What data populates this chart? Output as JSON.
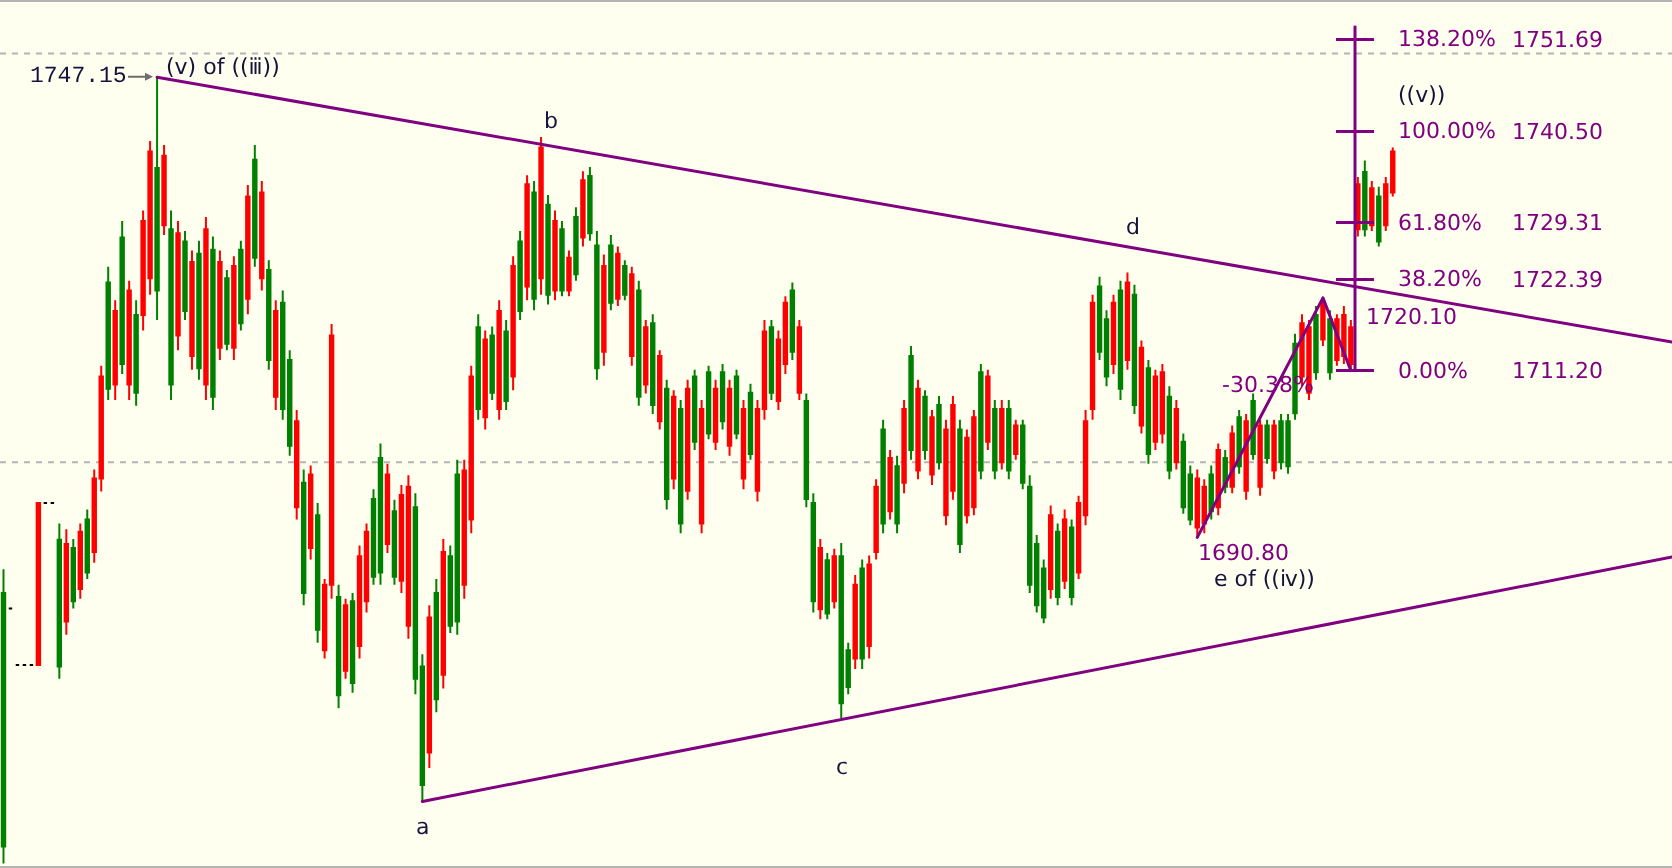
{
  "chart_data": {
    "type": "candlestick",
    "categories": [
      null,
      null,
      null,
      null,
      null,
      null,
      null,
      null,
      null,
      null,
      null,
      null,
      null,
      null,
      null,
      null,
      null,
      null,
      null,
      null,
      null,
      null,
      null,
      null,
      null,
      null,
      null,
      null,
      null,
      null,
      null,
      null,
      null,
      null,
      null,
      null,
      null,
      null,
      null,
      null,
      null,
      null,
      null,
      null,
      null,
      null,
      null,
      null,
      null,
      null,
      null,
      null,
      null,
      null,
      null,
      null,
      null,
      null,
      null,
      null,
      null,
      null,
      null,
      null,
      null,
      null,
      null,
      null,
      null,
      null,
      null,
      null,
      null,
      null,
      null,
      null,
      null,
      null,
      null,
      null,
      null,
      null,
      null,
      null,
      null,
      null,
      null,
      null,
      null,
      null,
      null,
      null,
      null,
      null,
      null,
      null,
      null,
      null,
      null,
      null,
      null,
      null,
      null,
      null,
      null,
      null,
      null,
      null,
      null,
      null,
      null,
      null,
      null,
      null,
      null,
      null,
      null,
      null,
      null,
      null,
      null,
      null,
      null,
      null,
      null,
      null,
      null,
      null,
      null,
      null,
      null,
      null,
      null,
      null,
      null,
      null,
      null,
      null,
      null,
      null,
      null,
      null,
      null,
      null,
      null,
      null,
      null,
      null,
      null,
      null,
      null,
      null,
      null,
      null,
      null,
      null,
      null,
      null,
      null,
      null,
      null,
      null,
      null,
      null,
      null,
      null,
      null,
      null,
      null,
      null,
      null,
      null,
      null,
      null,
      null,
      null,
      null,
      null,
      null,
      null,
      null,
      null,
      null,
      null,
      null,
      null,
      null,
      null,
      null,
      null,
      null,
      null,
      null,
      null,
      null,
      null,
      null,
      null,
      null,
      null,
      null,
      null,
      null,
      null,
      null,
      null,
      null,
      null,
      null,
      null,
      null,
      null,
      null,
      null,
      null,
      null,
      null,
      null,
      null,
      null,
      null,
      null,
      null,
      null,
      null,
      null,
      null,
      null,
      null,
      null,
      null,
      null,
      null,
      null,
      null,
      null,
      null,
      null,
      null,
      null
    ],
    "ohlc": [
      [
        1653.0,
        1686.9,
        1650.9,
        1684.0
      ],
      [
        1682.1,
        1682.1,
        1682.1,
        1682.1
      ],
      [
        1675.2,
        1675.2,
        1675.2,
        1675.2
      ],
      [
        1675.2,
        1675.2,
        1675.2,
        1675.2
      ],
      [
        1675.2,
        1675.2,
        1675.2,
        1675.2
      ],
      [
        1695.0,
        1695.0,
        1675.2,
        1675.2
      ],
      [
        1695.0,
        1695.0,
        1695.0,
        1695.0
      ],
      [
        1695.0,
        1695.0,
        1695.0,
        1695.0
      ],
      [
        1675.0,
        1692.5,
        1673.5,
        1690.5
      ],
      [
        1690.0,
        1691.8,
        1678.9,
        1680.5
      ],
      [
        1683.0,
        1690.6,
        1682.1,
        1689.5
      ],
      [
        1691.5,
        1692.5,
        1683.3,
        1684.5
      ],
      [
        1686.5,
        1694.2,
        1685.7,
        1693.0
      ],
      [
        1698.0,
        1699.1,
        1687.7,
        1689.0
      ],
      [
        1710.5,
        1711.8,
        1696.4,
        1698.0
      ],
      [
        1709.0,
        1723.9,
        1707.6,
        1722.0
      ],
      [
        1718.5,
        1719.8,
        1707.6,
        1709.5
      ],
      [
        1712.0,
        1729.5,
        1710.8,
        1727.5
      ],
      [
        1721.0,
        1722.2,
        1707.6,
        1709.5
      ],
      [
        1708.5,
        1719.8,
        1706.9,
        1718.0
      ],
      [
        1729.5,
        1730.8,
        1716.1,
        1718.0
      ],
      [
        1738.0,
        1739.3,
        1720.5,
        1722.5
      ],
      [
        1721.0,
        1747.15,
        1717.4,
        1736.0
      ],
      [
        1737.5,
        1738.8,
        1727.8,
        1729.0
      ],
      [
        1709.5,
        1730.8,
        1707.6,
        1728.5
      ],
      [
        1728.0,
        1729.5,
        1713.7,
        1715.5
      ],
      [
        1718.5,
        1728.3,
        1717.4,
        1727.0
      ],
      [
        1724.5,
        1725.9,
        1711.3,
        1713.0
      ],
      [
        1711.5,
        1727.1,
        1710.1,
        1725.5
      ],
      [
        1728.5,
        1730.0,
        1707.6,
        1709.5
      ],
      [
        1708.0,
        1727.6,
        1706.4,
        1726.0
      ],
      [
        1724.5,
        1725.9,
        1712.5,
        1714.0
      ],
      [
        1714.5,
        1723.5,
        1713.7,
        1722.5
      ],
      [
        1724.0,
        1725.2,
        1712.5,
        1714.0
      ],
      [
        1717.0,
        1727.1,
        1716.1,
        1726.0
      ],
      [
        1732.5,
        1733.9,
        1718.1,
        1720.0
      ],
      [
        1725.0,
        1738.8,
        1723.9,
        1737.0
      ],
      [
        1733.0,
        1734.4,
        1721.0,
        1722.5
      ],
      [
        1712.5,
        1724.7,
        1711.3,
        1723.5
      ],
      [
        1718.5,
        1719.8,
        1706.4,
        1708.0
      ],
      [
        1706.5,
        1721.0,
        1705.2,
        1719.5
      ],
      [
        1702.0,
        1713.7,
        1700.8,
        1712.5
      ],
      [
        1705.0,
        1706.4,
        1693.0,
        1694.5
      ],
      [
        1684.0,
        1699.1,
        1682.5,
        1697.5
      ],
      [
        1698.5,
        1699.6,
        1688.1,
        1689.5
      ],
      [
        1679.5,
        1695.0,
        1677.9,
        1693.5
      ],
      [
        1685.0,
        1685.7,
        1676.0,
        1677.0
      ],
      [
        1715.5,
        1716.9,
        1683.3,
        1685.0
      ],
      [
        1671.5,
        1685.0,
        1669.9,
        1683.5
      ],
      [
        1682.5,
        1683.3,
        1673.5,
        1674.5
      ],
      [
        1673.0,
        1684.0,
        1671.8,
        1683.0
      ],
      [
        1688.5,
        1689.8,
        1676.0,
        1677.5
      ],
      [
        1691.5,
        1692.5,
        1681.6,
        1683.0
      ],
      [
        1686.0,
        1696.7,
        1685.0,
        1695.5
      ],
      [
        1686.5,
        1702.3,
        1685.0,
        1700.5
      ],
      [
        1698.5,
        1699.8,
        1688.9,
        1690.0
      ],
      [
        1686.0,
        1695.4,
        1685.0,
        1694.0
      ],
      [
        1696.0,
        1697.2,
        1684.0,
        1685.5
      ],
      [
        1697.0,
        1698.4,
        1678.4,
        1680.0
      ],
      [
        1673.5,
        1696.2,
        1671.6,
        1694.5
      ],
      [
        1660.5,
        1676.5,
        1658.5,
        1675.0
      ],
      [
        1681.0,
        1682.5,
        1662.6,
        1664.5
      ],
      [
        1671.0,
        1685.7,
        1669.4,
        1684.0
      ],
      [
        1689.0,
        1690.6,
        1672.3,
        1674.0
      ],
      [
        1680.0,
        1689.8,
        1679.1,
        1688.5
      ],
      [
        1680.5,
        1700.3,
        1678.9,
        1698.5
      ],
      [
        1699.0,
        1700.3,
        1683.3,
        1685.0
      ],
      [
        1710.5,
        1711.8,
        1691.3,
        1693.0
      ],
      [
        1706.5,
        1718.1,
        1705.2,
        1716.5
      ],
      [
        1715.0,
        1716.1,
        1704.0,
        1705.5
      ],
      [
        1708.5,
        1716.6,
        1707.6,
        1715.5
      ],
      [
        1718.5,
        1719.8,
        1705.2,
        1706.5
      ],
      [
        1707.5,
        1717.4,
        1706.4,
        1716.0
      ],
      [
        1724.0,
        1725.2,
        1708.8,
        1710.5
      ],
      [
        1718.5,
        1728.3,
        1717.4,
        1727.0
      ],
      [
        1734.0,
        1735.1,
        1719.8,
        1721.5
      ],
      [
        1720.0,
        1734.4,
        1718.6,
        1733.0
      ],
      [
        1738.5,
        1739.8,
        1720.5,
        1722.5
      ],
      [
        1720.5,
        1732.7,
        1719.3,
        1731.5
      ],
      [
        1729.5,
        1730.8,
        1719.8,
        1721.0
      ],
      [
        1721.0,
        1729.5,
        1720.3,
        1728.5
      ],
      [
        1725.0,
        1725.9,
        1720.3,
        1721.0
      ],
      [
        1723.0,
        1731.2,
        1722.2,
        1730.0
      ],
      [
        1734.5,
        1735.6,
        1726.4,
        1727.5
      ],
      [
        1728.0,
        1736.1,
        1727.1,
        1735.0
      ],
      [
        1711.5,
        1728.3,
        1710.1,
        1726.5
      ],
      [
        1724.0,
        1725.4,
        1711.8,
        1713.5
      ],
      [
        1719.5,
        1727.8,
        1718.6,
        1726.5
      ],
      [
        1725.5,
        1726.4,
        1719.1,
        1720.0
      ],
      [
        1720.5,
        1724.7,
        1719.8,
        1724.0
      ],
      [
        1723.0,
        1723.9,
        1711.8,
        1713.0
      ],
      [
        1708.0,
        1722.2,
        1706.9,
        1721.0
      ],
      [
        1716.5,
        1717.4,
        1708.4,
        1709.5
      ],
      [
        1707.0,
        1718.1,
        1705.9,
        1717.0
      ],
      [
        1713.0,
        1713.7,
        1704.0,
        1705.0
      ],
      [
        1695.5,
        1710.1,
        1694.2,
        1709.0
      ],
      [
        1708.0,
        1708.8,
        1696.7,
        1698.0
      ],
      [
        1692.5,
        1707.6,
        1691.3,
        1706.5
      ],
      [
        1709.0,
        1710.1,
        1695.4,
        1696.5
      ],
      [
        1702.5,
        1711.3,
        1701.5,
        1710.5
      ],
      [
        1706.5,
        1707.6,
        1691.3,
        1692.5
      ],
      [
        1703.5,
        1711.8,
        1702.8,
        1711.0
      ],
      [
        1709.0,
        1710.1,
        1701.5,
        1702.5
      ],
      [
        1705.0,
        1712.0,
        1704.0,
        1711.0
      ],
      [
        1709.0,
        1710.1,
        1700.8,
        1702.0
      ],
      [
        1703.5,
        1711.3,
        1702.8,
        1710.5
      ],
      [
        1706.5,
        1707.6,
        1696.7,
        1698.0
      ],
      [
        1701.0,
        1709.6,
        1700.3,
        1708.5
      ],
      [
        1706.5,
        1707.6,
        1695.2,
        1696.5
      ],
      [
        1716.0,
        1717.4,
        1705.2,
        1706.5
      ],
      [
        1708.5,
        1717.4,
        1707.6,
        1716.5
      ],
      [
        1715.0,
        1716.1,
        1706.4,
        1707.5
      ],
      [
        1719.5,
        1720.3,
        1710.8,
        1712.0
      ],
      [
        1713.5,
        1722.0,
        1712.5,
        1721.0
      ],
      [
        1716.5,
        1717.4,
        1707.6,
        1708.5
      ],
      [
        1695.5,
        1708.4,
        1694.5,
        1707.5
      ],
      [
        1683.0,
        1696.2,
        1681.6,
        1695.0
      ],
      [
        1689.5,
        1690.6,
        1680.8,
        1682.0
      ],
      [
        1681.5,
        1688.9,
        1680.8,
        1688.0
      ],
      [
        1688.5,
        1689.4,
        1682.1,
        1683.0
      ],
      [
        1670.5,
        1690.1,
        1668.7,
        1688.5
      ],
      [
        1672.5,
        1677.9,
        1671.6,
        1677.0
      ],
      [
        1685.0,
        1686.2,
        1674.7,
        1676.0
      ],
      [
        1676.0,
        1688.1,
        1674.7,
        1687.0
      ],
      [
        1687.5,
        1688.6,
        1676.0,
        1677.5
      ],
      [
        1697.0,
        1697.9,
        1688.1,
        1689.0
      ],
      [
        1692.5,
        1705.2,
        1691.3,
        1704.0
      ],
      [
        1700.5,
        1701.5,
        1693.0,
        1694.0
      ],
      [
        1692.5,
        1700.8,
        1691.3,
        1699.5
      ],
      [
        1706.5,
        1707.6,
        1696.2,
        1697.5
      ],
      [
        1701.5,
        1714.2,
        1700.3,
        1713.0
      ],
      [
        1709.0,
        1710.1,
        1697.9,
        1699.0
      ],
      [
        1701.5,
        1708.8,
        1700.3,
        1708.0
      ],
      [
        1705.5,
        1706.4,
        1697.2,
        1698.5
      ],
      [
        1700.0,
        1708.1,
        1699.1,
        1707.0
      ],
      [
        1704.0,
        1705.2,
        1692.3,
        1693.5
      ],
      [
        1707.0,
        1708.1,
        1695.4,
        1696.5
      ],
      [
        1690.0,
        1705.2,
        1688.9,
        1704.0
      ],
      [
        1703.0,
        1704.0,
        1692.5,
        1693.5
      ],
      [
        1705.5,
        1706.4,
        1693.5,
        1694.5
      ],
      [
        1699.0,
        1712.0,
        1697.9,
        1711.0
      ],
      [
        1710.5,
        1711.3,
        1701.5,
        1702.5
      ],
      [
        1699.0,
        1707.6,
        1697.9,
        1706.5
      ],
      [
        1706.5,
        1707.6,
        1699.1,
        1700.0
      ],
      [
        1699.0,
        1707.6,
        1697.9,
        1706.5
      ],
      [
        1704.5,
        1705.2,
        1700.3,
        1701.0
      ],
      [
        1697.5,
        1705.2,
        1696.7,
        1704.5
      ],
      [
        1685.0,
        1698.4,
        1684.0,
        1697.0
      ],
      [
        1682.5,
        1691.1,
        1681.6,
        1690.0
      ],
      [
        1681.0,
        1688.1,
        1680.3,
        1687.0
      ],
      [
        1693.5,
        1694.7,
        1683.3,
        1684.5
      ],
      [
        1683.5,
        1692.5,
        1682.5,
        1691.5
      ],
      [
        1693.0,
        1694.2,
        1684.5,
        1685.5
      ],
      [
        1683.5,
        1693.0,
        1682.5,
        1692.0
      ],
      [
        1695.0,
        1695.9,
        1685.7,
        1686.5
      ],
      [
        1705.0,
        1706.4,
        1692.3,
        1693.5
      ],
      [
        1719.5,
        1720.5,
        1705.2,
        1706.5
      ],
      [
        1713.5,
        1722.7,
        1712.5,
        1721.5
      ],
      [
        1710.5,
        1718.6,
        1709.3,
        1717.5
      ],
      [
        1719.5,
        1720.5,
        1710.8,
        1712.0
      ],
      [
        1709.0,
        1722.2,
        1707.6,
        1721.0
      ],
      [
        1722.0,
        1723.2,
        1711.3,
        1712.5
      ],
      [
        1707.0,
        1721.7,
        1705.9,
        1720.5
      ],
      [
        1714.0,
        1714.9,
        1703.5,
        1704.5
      ],
      [
        1701.0,
        1712.5,
        1699.8,
        1711.5
      ],
      [
        1710.5,
        1711.3,
        1701.5,
        1702.5
      ],
      [
        1711.0,
        1712.0,
        1702.3,
        1703.5
      ],
      [
        1699.0,
        1709.3,
        1697.9,
        1708.0
      ],
      [
        1706.5,
        1707.6,
        1699.1,
        1700.0
      ],
      [
        1694.5,
        1703.5,
        1693.7,
        1702.5
      ],
      [
        1693.0,
        1699.6,
        1692.3,
        1698.5
      ],
      [
        1698.0,
        1699.1,
        1690.8,
        1692.0
      ],
      [
        1697.0,
        1697.9,
        1691.3,
        1692.5
      ],
      [
        1694.0,
        1699.6,
        1693.0,
        1698.5
      ],
      [
        1701.5,
        1702.3,
        1693.5,
        1694.5
      ],
      [
        1697.0,
        1701.5,
        1696.2,
        1700.5
      ],
      [
        1703.5,
        1704.5,
        1696.2,
        1697.0
      ],
      [
        1699.5,
        1706.4,
        1698.6,
        1705.5
      ],
      [
        1705.0,
        1705.9,
        1695.4,
        1696.5
      ],
      [
        1701.0,
        1708.4,
        1700.3,
        1707.5
      ],
      [
        1704.5,
        1705.2,
        1695.9,
        1697.0
      ],
      [
        1700.5,
        1705.2,
        1699.8,
        1704.5
      ],
      [
        1704.5,
        1705.2,
        1697.9,
        1699.0
      ],
      [
        1700.0,
        1705.9,
        1699.1,
        1705.0
      ],
      [
        1699.5,
        1705.9,
        1698.6,
        1705.0
      ],
      [
        1706.0,
        1715.7,
        1705.2,
        1714.5
      ],
      [
        1717.0,
        1718.1,
        1709.3,
        1710.5
      ],
      [
        1716.5,
        1717.4,
        1707.6,
        1708.5
      ],
      [
        1711.0,
        1719.1,
        1710.1,
        1718.0
      ],
      [
        1719.5,
        1720.1,
        1714.2,
        1715.0
      ],
      [
        1711.0,
        1718.6,
        1710.1,
        1717.5
      ],
      [
        1717.5,
        1718.1,
        1711.8,
        1712.5
      ],
      [
        1718.0,
        1719.1,
        1712.0,
        1713.0
      ],
      [
        1716.5,
        1717.4,
        1711.2,
        1712.0
      ],
      [
        1734.0,
        1734.9,
        1727.6,
        1728.5
      ],
      [
        1728.5,
        1736.9,
        1727.6,
        1735.5
      ],
      [
        1733.5,
        1734.4,
        1728.3,
        1729.0
      ],
      [
        1727.0,
        1733.7,
        1726.4,
        1732.5
      ],
      [
        1734.0,
        1734.9,
        1728.3,
        1729.0
      ],
      [
        1738.0,
        1738.5,
        1732.5,
        1733.0
      ],
      null,
      null,
      null,
      null,
      null,
      null,
      null,
      null,
      null,
      null,
      null,
      null,
      null,
      null,
      null,
      null,
      null,
      null,
      null,
      null,
      null,
      null,
      null,
      null,
      null,
      null,
      null,
      null,
      null,
      null,
      null,
      null,
      null,
      null,
      null,
      null,
      null,
      null,
      null,
      null
    ],
    "colors": [
      "#008000",
      "#000000",
      "#000000",
      "#000000",
      "#000000",
      "#ff0000",
      "#000000",
      "#000000",
      "#008000",
      "#ff0000",
      "#008000",
      "#ff0000",
      "#008000",
      "#ff0000",
      "#ff0000",
      "#008000",
      "#ff0000",
      "#008000",
      "#ff0000",
      "#008000",
      "#ff0000",
      "#ff0000",
      "#008000",
      "#ff0000",
      "#008000",
      "#ff0000",
      "#008000",
      "#ff0000",
      "#008000",
      "#ff0000",
      "#008000",
      "#ff0000",
      "#008000",
      "#ff0000",
      "#008000",
      "#ff0000",
      "#008000",
      "#ff0000",
      "#008000",
      "#ff0000",
      "#008000",
      "#008000",
      "#ff0000",
      "#008000",
      "#ff0000",
      "#008000",
      "#ff0000",
      "#ff0000",
      "#008000",
      "#ff0000",
      "#008000",
      "#ff0000",
      "#ff0000",
      "#008000",
      "#008000",
      "#ff0000",
      "#008000",
      "#ff0000",
      "#ff0000",
      "#008000",
      "#008000",
      "#ff0000",
      "#008000",
      "#ff0000",
      "#008000",
      "#008000",
      "#ff0000",
      "#ff0000",
      "#008000",
      "#ff0000",
      "#008000",
      "#ff0000",
      "#008000",
      "#ff0000",
      "#008000",
      "#ff0000",
      "#008000",
      "#ff0000",
      "#008000",
      "#ff0000",
      "#008000",
      "#ff0000",
      "#008000",
      "#ff0000",
      "#008000",
      "#008000",
      "#ff0000",
      "#008000",
      "#ff0000",
      "#008000",
      "#ff0000",
      "#008000",
      "#ff0000",
      "#008000",
      "#ff0000",
      "#008000",
      "#ff0000",
      "#008000",
      "#ff0000",
      "#008000",
      "#ff0000",
      "#008000",
      "#ff0000",
      "#008000",
      "#ff0000",
      "#008000",
      "#ff0000",
      "#008000",
      "#ff0000",
      "#ff0000",
      "#008000",
      "#ff0000",
      "#ff0000",
      "#008000",
      "#ff0000",
      "#008000",
      "#008000",
      "#ff0000",
      "#008000",
      "#ff0000",
      "#008000",
      "#008000",
      "#ff0000",
      "#008000",
      "#ff0000",
      "#ff0000",
      "#008000",
      "#ff0000",
      "#008000",
      "#ff0000",
      "#008000",
      "#ff0000",
      "#008000",
      "#ff0000",
      "#008000",
      "#ff0000",
      "#ff0000",
      "#008000",
      "#ff0000",
      "#ff0000",
      "#008000",
      "#ff0000",
      "#008000",
      "#ff0000",
      "#008000",
      "#ff0000",
      "#008000",
      "#008000",
      "#008000",
      "#008000",
      "#ff0000",
      "#008000",
      "#ff0000",
      "#008000",
      "#ff0000",
      "#ff0000",
      "#ff0000",
      "#008000",
      "#008000",
      "#ff0000",
      "#008000",
      "#ff0000",
      "#008000",
      "#ff0000",
      "#008000",
      "#ff0000",
      "#ff0000",
      "#008000",
      "#ff0000",
      "#008000",
      "#008000",
      "#ff0000",
      "#ff0000",
      "#008000",
      "#ff0000",
      "#008000",
      "#ff0000",
      "#008000",
      "#ff0000",
      "#008000",
      "#ff0000",
      "#008000",
      "#ff0000",
      "#008000",
      "#008000",
      "#008000",
      "#ff0000",
      "#ff0000",
      "#008000",
      "#ff0000",
      "#008000",
      "#ff0000",
      "#ff0000",
      "#ff0000",
      "#ff0000",
      "#008000",
      "#ff0000",
      "#008000",
      "#ff0000",
      "#ff0000",
      null,
      null,
      null,
      null,
      null,
      null,
      null,
      null,
      null,
      null,
      null,
      null,
      null,
      null,
      null,
      null,
      null,
      null,
      null,
      null,
      null,
      null,
      null,
      null,
      null,
      null,
      null,
      null,
      null,
      null,
      null,
      null,
      null,
      null,
      null,
      null,
      null,
      null,
      null,
      null
    ],
    "series": [
      {
        "type": "line",
        "color": "#800080",
        "values": [
          null,
          null,
          null,
          null,
          null,
          null,
          null,
          null,
          null,
          null,
          null,
          null,
          null,
          null,
          null,
          null,
          null,
          null,
          null,
          null,
          null,
          null,
          1747.1,
          null,
          null,
          null,
          null,
          null,
          null,
          null,
          null,
          null,
          null,
          null,
          null,
          null,
          null,
          null,
          null,
          null,
          null,
          null,
          null,
          null,
          null,
          null,
          null,
          null,
          null,
          null,
          null,
          null,
          null,
          null,
          null,
          null,
          null,
          null,
          null,
          null,
          null,
          null,
          null,
          null,
          null,
          null,
          null,
          null,
          null,
          null,
          null,
          null,
          null,
          null,
          null,
          null,
          null,
          null,
          null,
          null,
          null,
          null,
          null,
          null,
          null,
          null,
          null,
          null,
          null,
          null,
          null,
          null,
          null,
          null,
          null,
          null,
          null,
          null,
          null,
          null,
          null,
          null,
          null,
          null,
          null,
          null,
          null,
          null,
          null,
          null,
          null,
          null,
          null,
          null,
          null,
          null,
          null,
          null,
          null,
          null,
          null,
          null,
          null,
          null,
          null,
          null,
          null,
          null,
          null,
          null,
          null,
          null,
          null,
          null,
          null,
          null,
          null,
          null,
          null,
          null,
          null,
          null,
          null,
          null,
          null,
          null,
          null,
          null,
          null,
          null,
          null,
          null,
          null,
          null,
          null,
          null,
          null,
          null,
          null,
          null,
          null,
          null,
          null,
          null,
          null,
          null,
          null,
          null,
          null,
          null,
          null,
          null,
          null,
          null,
          null,
          null,
          null,
          null,
          null,
          null,
          null,
          null,
          null,
          null,
          null,
          null,
          null,
          null,
          null,
          null,
          null,
          null,
          null,
          null,
          null,
          null,
          null,
          null,
          null,
          null,
          null,
          null,
          null,
          null,
          null,
          null,
          null,
          null,
          null,
          null,
          null,
          null,
          null,
          null,
          null,
          null,
          null,
          null,
          null,
          null,
          null,
          null,
          null,
          null,
          null,
          null,
          null,
          null,
          null,
          null,
          null,
          null,
          null,
          null,
          null,
          null,
          null,
          null,
          null,
          1714.7
        ]
      },
      {
        "type": "line",
        "color": "#800080",
        "values": [
          null,
          null,
          null,
          null,
          null,
          null,
          null,
          null,
          null,
          null,
          null,
          null,
          null,
          null,
          null,
          null,
          null,
          null,
          null,
          null,
          null,
          null,
          null,
          null,
          null,
          null,
          null,
          null,
          null,
          null,
          null,
          null,
          null,
          null,
          null,
          null,
          null,
          null,
          null,
          null,
          null,
          null,
          null,
          null,
          null,
          null,
          null,
          null,
          null,
          null,
          null,
          null,
          null,
          null,
          null,
          null,
          null,
          null,
          null,
          null,
          1658.5,
          null,
          null,
          null,
          null,
          null,
          null,
          null,
          null,
          null,
          null,
          null,
          null,
          null,
          null,
          null,
          null,
          null,
          null,
          null,
          null,
          null,
          null,
          null,
          null,
          null,
          null,
          null,
          null,
          null,
          null,
          null,
          null,
          null,
          null,
          null,
          null,
          null,
          null,
          null,
          null,
          null,
          null,
          null,
          null,
          null,
          null,
          null,
          null,
          null,
          null,
          null,
          null,
          null,
          null,
          null,
          null,
          null,
          null,
          null,
          null,
          null,
          null,
          null,
          null,
          null,
          null,
          null,
          null,
          null,
          null,
          null,
          null,
          null,
          null,
          null,
          null,
          null,
          null,
          null,
          null,
          null,
          null,
          null,
          null,
          null,
          null,
          null,
          null,
          null,
          null,
          null,
          null,
          null,
          null,
          null,
          null,
          null,
          null,
          null,
          null,
          null,
          null,
          null,
          null,
          null,
          null,
          null,
          null,
          null,
          null,
          null,
          null,
          null,
          null,
          null,
          null,
          null,
          null,
          null,
          null,
          null,
          null,
          null,
          null,
          null,
          null,
          null,
          null,
          null,
          null,
          null,
          null,
          null,
          null,
          null,
          null,
          null,
          null,
          null,
          null,
          null,
          null,
          null,
          null,
          null,
          null,
          null,
          null,
          null,
          null,
          null,
          null,
          null,
          null,
          null,
          null,
          null,
          null,
          null,
          null,
          null,
          null,
          null,
          null,
          null,
          null,
          null,
          null,
          null,
          null,
          null,
          null,
          null,
          null,
          null,
          null,
          null,
          null,
          1688.4
        ]
      },
      {
        "type": "line",
        "color": "#800080",
        "values": [
          null,
          null,
          null,
          null,
          null,
          null,
          null,
          null,
          null,
          null,
          null,
          null,
          null,
          null,
          null,
          null,
          null,
          null,
          null,
          null,
          null,
          null,
          null,
          null,
          null,
          null,
          null,
          null,
          null,
          null,
          null,
          null,
          null,
          null,
          null,
          null,
          null,
          null,
          null,
          null,
          null,
          null,
          null,
          null,
          null,
          null,
          null,
          null,
          null,
          null,
          null,
          null,
          null,
          null,
          null,
          null,
          null,
          null,
          null,
          null,
          null,
          null,
          null,
          null,
          null,
          null,
          null,
          null,
          null,
          null,
          null,
          null,
          null,
          null,
          null,
          null,
          null,
          null,
          null,
          null,
          null,
          null,
          null,
          null,
          null,
          null,
          null,
          null,
          null,
          null,
          null,
          null,
          null,
          null,
          null,
          null,
          null,
          null,
          null,
          null,
          null,
          null,
          null,
          null,
          null,
          null,
          null,
          null,
          null,
          null,
          null,
          null,
          null,
          null,
          null,
          null,
          null,
          null,
          null,
          null,
          null,
          null,
          null,
          null,
          null,
          null,
          null,
          null,
          null,
          null,
          null,
          null,
          null,
          null,
          null,
          null,
          null,
          null,
          null,
          null,
          null,
          null,
          null,
          null,
          null,
          null,
          null,
          null,
          null,
          null,
          null,
          null,
          null,
          null,
          null,
          null,
          null,
          null,
          null,
          null,
          null,
          null,
          null,
          null,
          null,
          null,
          null,
          null,
          null,
          null,
          null,
          1690.8,
          null,
          null,
          null,
          null,
          null,
          null,
          null,
          null,
          null,
          null,
          null,
          null,
          null,
          null,
          null,
          null,
          null,
          1720.1,
          null,
          null,
          null,
          1711.2,
          null,
          null,
          null,
          null,
          null,
          null,
          null,
          null,
          null,
          null,
          null,
          null,
          null,
          null,
          null,
          null,
          null,
          null,
          null,
          null,
          null,
          null,
          null,
          null,
          null,
          null,
          null,
          null,
          null,
          null,
          null,
          null,
          null,
          null,
          null,
          null,
          null,
          null,
          null,
          null,
          null,
          null,
          null,
          null,
          null,
          null
        ]
      }
    ],
    "ylim": [
      1650.6,
      1756.3
    ],
    "yticks": [
      1751.69,
      {
        "value": 1740.5,
        "label": "1740.50"
      },
      1729.31,
      1722.39,
      {
        "value": 1711.2,
        "label": "1711.20"
      }
    ],
    "tick_labels": "y",
    "ref_lines": [
      {
        "axis": "y",
        "value": 1750,
        "color": "#b4b4b4",
        "line_style": "dotted"
      },
      {
        "axis": "y",
        "value": 1700,
        "color": "#b4b4b4",
        "line_style": "dotted"
      }
    ],
    "annotations": [
      "1747.15",
      "(v) of ((ⅲ))",
      "b",
      {
        "text": "a",
        "y": 1658.5
      },
      {
        "text": "c",
        "y": 1668.7
      },
      "d",
      "1690.80",
      "e of ((ⅳ))",
      "1720.10",
      "-30.38%",
      "((v))",
      "138.20%",
      "100.00%",
      "61.80%",
      "38.20%",
      "0.00%"
    ]
  }
}
